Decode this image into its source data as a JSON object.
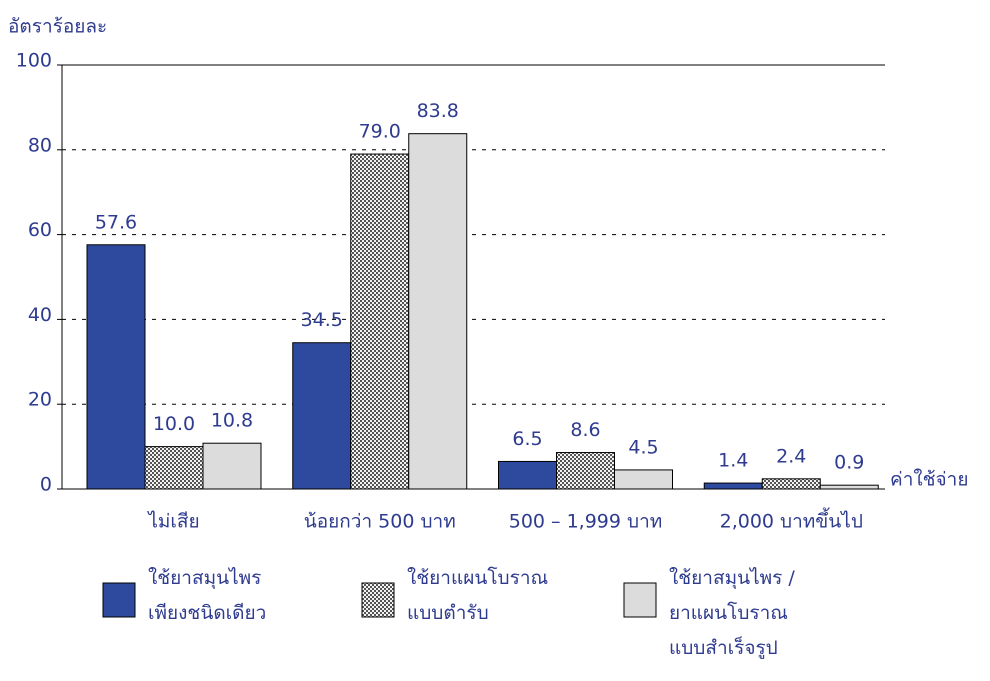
{
  "chart_data": {
    "type": "bar",
    "ylabel": "อัตราร้อยละ",
    "xlabel": "ค่าใช้จ่าย",
    "categories": [
      "ไม่เสีย",
      "น้อยกว่า 500 บาท",
      "500 – 1,999 บาท",
      "2,000 บาทขึ้นไป"
    ],
    "series": [
      {
        "name": "ใช้ยาสมุนไพร\nเพียงชนิดเดียว",
        "color": "#2e4a9e",
        "values": [
          57.6,
          34.5,
          6.5,
          1.4
        ],
        "value_labels": [
          "57.6",
          "34.5",
          "6.5",
          "1.4"
        ]
      },
      {
        "name": "ใช้ยาแผนโบราณ\nแบบตำรับ",
        "color": "#8c8c8c",
        "pattern": "checker",
        "values": [
          10.0,
          79.0,
          8.6,
          2.4
        ],
        "value_labels": [
          "10.0",
          "79.0",
          "8.6",
          "2.4"
        ]
      },
      {
        "name": "ใช้ยาสมุนไพร /\nยาแผนโบราณ\nแบบสำเร็จรูป",
        "color": "#dcdcdc",
        "values": [
          10.8,
          83.8,
          4.5,
          0.9
        ],
        "value_labels": [
          "10.8",
          "83.8",
          "4.5",
          "0.9"
        ]
      }
    ],
    "ylim": [
      0,
      100
    ],
    "yticks": [
      0,
      20,
      40,
      60,
      80,
      100
    ],
    "grid": true
  }
}
